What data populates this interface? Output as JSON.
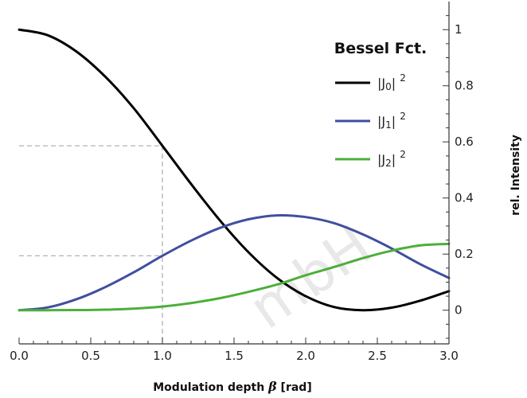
{
  "chart_data": {
    "type": "line",
    "xlabel_pre": "Modulation depth ",
    "xlabel_sym": "β",
    "xlabel_post": " [rad]",
    "ylabel": "rel. Intensity",
    "xlim": [
      0,
      3.0
    ],
    "ylim": [
      -0.12,
      1.1
    ],
    "x_ticks": [
      "0.0",
      "0.5",
      "1.0",
      "1.5",
      "2.0",
      "2.5",
      "3.0"
    ],
    "y_ticks": [
      "0",
      "0.2",
      "0.4",
      "0.6",
      "0.8",
      "1"
    ],
    "legend_title": "Bessel Fct.",
    "legend_position": "top-right",
    "watermark": "mbH",
    "x": [
      0.0,
      0.2,
      0.4,
      0.6,
      0.8,
      1.0,
      1.2,
      1.4,
      1.6,
      1.8,
      2.0,
      2.2,
      2.4,
      2.6,
      2.8,
      3.0
    ],
    "series": [
      {
        "name": "|J₀|²",
        "label_base": "|J",
        "label_sub": "0",
        "label_sup": "2",
        "color": "#000000",
        "values": [
          1.0,
          0.98,
          0.922,
          0.833,
          0.72,
          0.586,
          0.45,
          0.321,
          0.207,
          0.115,
          0.05,
          0.011,
          0.0,
          0.009,
          0.034,
          0.068
        ]
      },
      {
        "name": "|J₁|²",
        "label_base": "|J",
        "label_sub": "1",
        "label_sup": "2",
        "color": "#3f4fa0",
        "values": [
          0.0,
          0.01,
          0.039,
          0.082,
          0.135,
          0.194,
          0.248,
          0.293,
          0.324,
          0.338,
          0.332,
          0.31,
          0.27,
          0.22,
          0.164,
          0.115
        ]
      },
      {
        "name": "|J₂|²",
        "label_base": "|J",
        "label_sub": "2",
        "label_sup": "2",
        "color": "#4caf3a",
        "values": [
          0.0,
          3e-05,
          0.0004,
          0.0019,
          0.0057,
          0.0131,
          0.0254,
          0.0428,
          0.0653,
          0.0914,
          0.1246,
          0.1543,
          0.1857,
          0.2122,
          0.2312,
          0.2365
        ]
      }
    ],
    "reference": {
      "x": 1.0,
      "y_values": [
        0.586,
        0.194
      ]
    }
  }
}
